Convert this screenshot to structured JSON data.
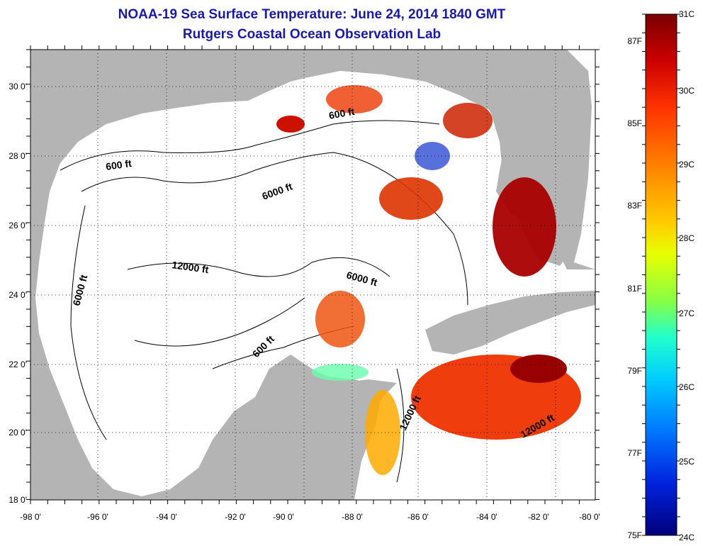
{
  "title": {
    "line1": "NOAA-19 Sea Surface Temperature:  June 24, 2014 1840 GMT",
    "line2": "Rutgers Coastal Ocean Observation Lab"
  },
  "x_axis": {
    "ticks": [
      "-98 0'",
      "-96 0'",
      "-94 0'",
      "-92 0'",
      "-90 0'",
      "-88 0'",
      "-86 0'",
      "-84 0'",
      "-82 0'",
      "-80 0'"
    ]
  },
  "y_axis": {
    "ticks": [
      "30 0'",
      "28 0'",
      "26 0'",
      "24 0'",
      "22 0'",
      "20 0'",
      "18 0'"
    ]
  },
  "contour_labels": [
    "600 ft",
    "600 ft",
    "600 ft",
    "6000 ft",
    "6000 ft",
    "6000 ft",
    "12000 ft",
    "12000 ft",
    "12000 ft"
  ],
  "colorbar": {
    "celsius_labels": [
      "31C",
      "30C",
      "29C",
      "28C",
      "27C",
      "26C",
      "25C",
      "24C"
    ],
    "fahrenheit_labels": [
      "87F",
      "85F",
      "83F",
      "81F",
      "79F",
      "77F",
      "75F"
    ],
    "colors": [
      "#7a0000",
      "#cc0000",
      "#ff3300",
      "#ff8800",
      "#ffcc00",
      "#e8ff00",
      "#88ff44",
      "#22ffcc",
      "#00ccff",
      "#0077ff",
      "#0022dd",
      "#00007a"
    ]
  },
  "colors": {
    "land": "#b4b4b4",
    "water": "#ffffff",
    "title": "#1a1aa8"
  }
}
